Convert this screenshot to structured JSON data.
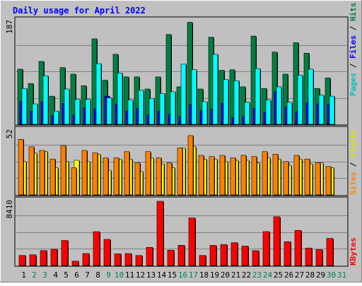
{
  "chart_data": [
    {
      "type": "bar",
      "title": "Daily usage for April 2022",
      "ylabel": "Pages / Files / Hits",
      "ymax_label": "187",
      "ylim": [
        0,
        187
      ],
      "categories": [
        "1",
        "2",
        "3",
        "4",
        "5",
        "6",
        "7",
        "8",
        "9",
        "10",
        "11",
        "12",
        "13",
        "14",
        "15",
        "16",
        "17",
        "18",
        "19",
        "20",
        "21",
        "22",
        "23",
        "24",
        "25",
        "26",
        "27",
        "28",
        "29",
        "30",
        "31"
      ],
      "weekend_days": [
        "2",
        "3",
        "9",
        "10",
        "16",
        "17",
        "23",
        "24",
        "30",
        "31"
      ],
      "series": [
        {
          "name": "Hits",
          "color": "#008040",
          "values": [
            100,
            74,
            114,
            51,
            103,
            91,
            70,
            155,
            80,
            127,
            86,
            86,
            64,
            86,
            163,
            68,
            185,
            64,
            158,
            98,
            99,
            68,
            160,
            65,
            131,
            91,
            148,
            129,
            65,
            84,
            0
          ]
        },
        {
          "name": "Files",
          "color": "#0000ff",
          "values": [
            42,
            24,
            41,
            16,
            38,
            17,
            30,
            28,
            51,
            36,
            24,
            29,
            17,
            24,
            18,
            14,
            36,
            25,
            28,
            38,
            12,
            15,
            29,
            22,
            59,
            32,
            23,
            39,
            37,
            36,
            0
          ]
        },
        {
          "name": "Pages",
          "color": "#00ffff",
          "values": [
            65,
            37,
            88,
            24,
            64,
            45,
            45,
            110,
            48,
            93,
            44,
            62,
            47,
            56,
            59,
            109,
            99,
            41,
            127,
            81,
            79,
            40,
            101,
            44,
            68,
            40,
            89,
            100,
            53,
            51,
            0
          ]
        }
      ]
    },
    {
      "type": "bar",
      "ylabel": "Sites / Visits",
      "ymax_label": "52",
      "ylim": [
        0,
        52
      ],
      "categories": [
        "1",
        "2",
        "3",
        "4",
        "5",
        "6",
        "7",
        "8",
        "9",
        "10",
        "11",
        "12",
        "13",
        "14",
        "15",
        "16",
        "17",
        "18",
        "19",
        "20",
        "21",
        "22",
        "23",
        "24",
        "25",
        "26",
        "27",
        "28",
        "29",
        "30",
        "31"
      ],
      "series": [
        {
          "name": "Visits",
          "color": "#ff8000",
          "values": [
            45,
            39,
            36,
            29,
            40,
            22,
            36,
            34,
            30,
            30,
            35,
            26,
            35,
            30,
            26,
            38,
            48,
            32,
            31,
            32,
            30,
            32,
            31,
            35,
            33,
            27,
            32,
            29,
            26,
            23,
            0
          ]
        },
        {
          "name": "Sites",
          "color": "#ffff00",
          "values": [
            27,
            34,
            35,
            22,
            27,
            28,
            27,
            33,
            20,
            29,
            29,
            19,
            30,
            25,
            22,
            38,
            39,
            29,
            29,
            27,
            28,
            28,
            26,
            30,
            29,
            24,
            29,
            25,
            26,
            22,
            0
          ]
        }
      ]
    },
    {
      "type": "bar",
      "ylabel": "KBytes",
      "ymax_label": "8410",
      "ylim": [
        0,
        8410
      ],
      "categories": [
        "1",
        "2",
        "3",
        "4",
        "5",
        "6",
        "7",
        "8",
        "9",
        "10",
        "11",
        "12",
        "13",
        "14",
        "15",
        "16",
        "17",
        "18",
        "19",
        "20",
        "21",
        "22",
        "23",
        "24",
        "25",
        "26",
        "27",
        "28",
        "29",
        "30",
        "31"
      ],
      "series": [
        {
          "name": "KBytes",
          "color": "#ff0000",
          "values": [
            1320,
            1410,
            1960,
            2130,
            3280,
            570,
            1570,
            4430,
            3420,
            1530,
            1570,
            1310,
            2380,
            8410,
            2010,
            2650,
            6230,
            1320,
            2640,
            2750,
            2990,
            2540,
            1950,
            4440,
            6380,
            3120,
            4600,
            2290,
            2080,
            3550,
            0
          ]
        }
      ]
    }
  ],
  "colors": {
    "background": "#c0c0c0",
    "plot_bg": "#c0c0c0",
    "grid": "#808080",
    "title": "#0000ff",
    "weekday_label": "#000000",
    "weekend_label": "#00805c"
  }
}
